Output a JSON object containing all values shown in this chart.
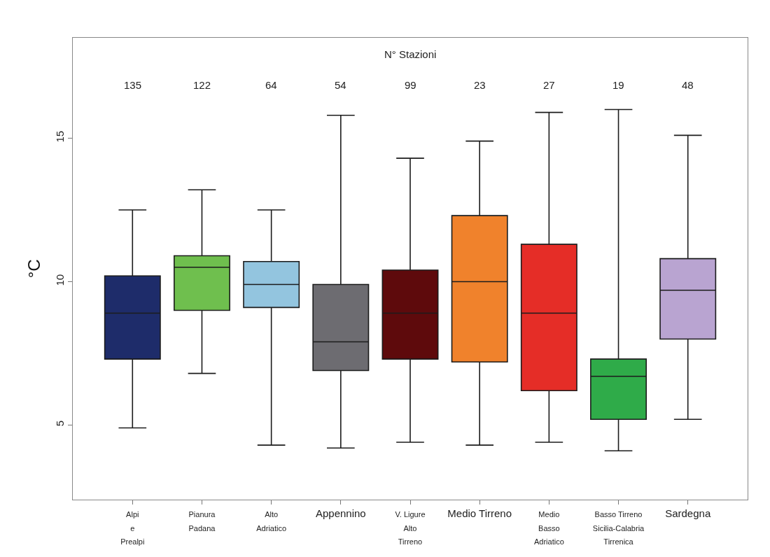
{
  "chart_data": {
    "type": "box",
    "ylabel": "°C",
    "categories": [
      "Alpi\ne\nPrealpi",
      "Pianura\nPadana",
      "Alto\nAdriatico",
      "Appennino",
      "V. Ligure\nAlto\nTirreno",
      "Medio Tirreno",
      "Medio\nBasso\nAdriatico",
      "Basso Tirreno\nSicilia-Calabria\nTirrenica",
      "Sardegna"
    ],
    "colors": [
      "#1e2c6a",
      "#6fbf4e",
      "#93c5df",
      "#6d6c71",
      "#5e0a0c",
      "#f0822c",
      "#e52d27",
      "#2fab49",
      "#b9a4d1"
    ],
    "boxes": [
      {
        "low": 4.9,
        "q1": 7.3,
        "median": 8.9,
        "q3": 10.2,
        "high": 12.5
      },
      {
        "low": 6.8,
        "q1": 9.0,
        "median": 10.5,
        "q3": 10.9,
        "high": 13.2
      },
      {
        "low": 4.3,
        "q1": 9.1,
        "median": 9.9,
        "q3": 10.7,
        "high": 12.5
      },
      {
        "low": 4.2,
        "q1": 6.9,
        "median": 7.9,
        "q3": 9.9,
        "high": 15.8
      },
      {
        "low": 4.4,
        "q1": 7.3,
        "median": 8.9,
        "q3": 10.4,
        "high": 14.3
      },
      {
        "low": 4.3,
        "q1": 7.2,
        "median": 10.0,
        "q3": 12.3,
        "high": 14.9
      },
      {
        "low": 4.4,
        "q1": 6.2,
        "median": 8.9,
        "q3": 11.3,
        "high": 15.9
      },
      {
        "low": 4.1,
        "q1": 5.2,
        "median": 6.7,
        "q3": 7.3,
        "high": 16.0
      },
      {
        "low": 5.2,
        "q1": 8.0,
        "median": 9.7,
        "q3": 10.8,
        "high": 15.1
      }
    ],
    "ylim": [
      2.4,
      18.5
    ],
    "yticks": [
      5,
      10,
      15
    ],
    "annotations": [
      "N° Stazioni",
      "135",
      "122",
      "64",
      "54",
      "99",
      "23",
      "27",
      "19",
      "48"
    ]
  }
}
